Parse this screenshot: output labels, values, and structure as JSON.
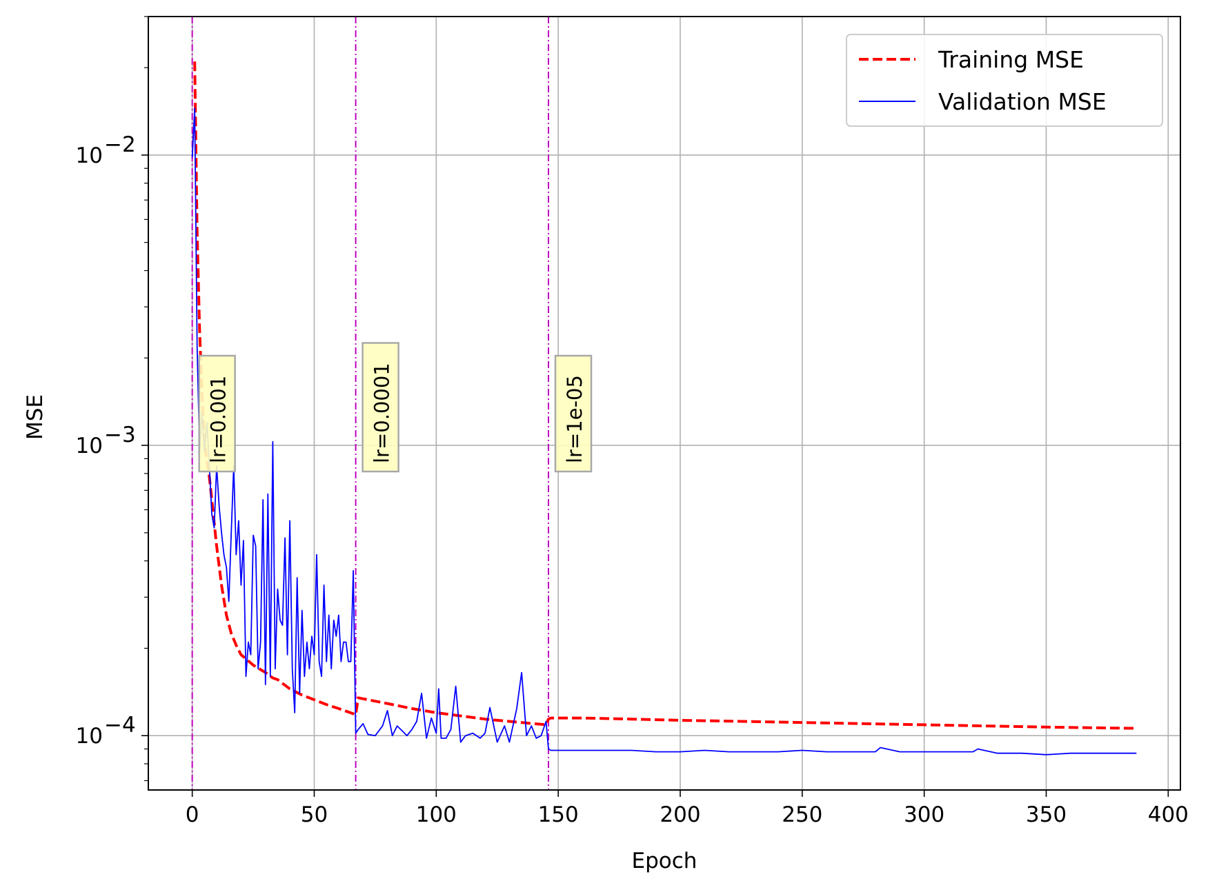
{
  "chart_data": {
    "type": "line",
    "xlabel": "Epoch",
    "ylabel": "MSE",
    "xlim": [
      -18,
      405
    ],
    "ylim": [
      6.5e-05,
      0.03
    ],
    "yscale": "log",
    "grid": true,
    "legend_position": "top-right",
    "x_ticks": [
      0,
      50,
      100,
      150,
      200,
      250,
      300,
      350,
      400
    ],
    "x_tick_labels": [
      "0",
      "50",
      "100",
      "150",
      "200",
      "250",
      "300",
      "350",
      "400"
    ],
    "y_ticks": [
      {
        "value": 0.01,
        "base": "10",
        "exp": "−2"
      },
      {
        "value": 0.001,
        "base": "10",
        "exp": "−3"
      },
      {
        "value": 0.0001,
        "base": "10",
        "exp": "−4"
      }
    ],
    "lr_changes": [
      {
        "epoch": 0,
        "label": "lr=0.001"
      },
      {
        "epoch": 67,
        "label": "lr=0.0001"
      },
      {
        "epoch": 146,
        "label": "lr=1e-05"
      }
    ],
    "series": [
      {
        "name": "Training MSE",
        "color": "#ff0000",
        "style": "dashed",
        "x": [
          1,
          2,
          3,
          4,
          5,
          6,
          7,
          8,
          10,
          12,
          14,
          16,
          18,
          20,
          25,
          30,
          33,
          35,
          40,
          45,
          50,
          55,
          60,
          66,
          67,
          68,
          70,
          80,
          90,
          100,
          110,
          120,
          130,
          140,
          145,
          146,
          147,
          160,
          180,
          200,
          250,
          300,
          350,
          387
        ],
        "y": [
          0.021,
          0.0055,
          0.0025,
          0.0015,
          0.00105,
          0.00088,
          0.00078,
          0.00065,
          0.00045,
          0.00033,
          0.00026,
          0.000225,
          0.000205,
          0.00019,
          0.000175,
          0.000165,
          0.000158,
          0.000156,
          0.000145,
          0.000138,
          0.000133,
          0.000128,
          0.000124,
          0.000119,
          0.000118,
          0.000135,
          0.000134,
          0.000129,
          0.000124,
          0.00012,
          0.000117,
          0.000114,
          0.000112,
          0.00011,
          0.000109,
          0.000114,
          0.000115,
          0.000115,
          0.000114,
          0.000113,
          0.000111,
          0.000109,
          0.000107,
          0.000106
        ]
      },
      {
        "name": "Validation MSE",
        "color": "#0000ff",
        "style": "solid",
        "x": [
          0,
          1,
          2,
          3,
          4,
          5,
          6,
          7,
          8,
          9,
          10,
          11,
          12,
          13,
          14,
          15,
          16,
          17,
          18,
          19,
          20,
          21,
          22,
          23,
          24,
          25,
          26,
          27,
          28,
          29,
          30,
          31,
          32,
          33,
          34,
          35,
          36,
          37,
          38,
          39,
          40,
          41,
          42,
          43,
          44,
          45,
          46,
          47,
          48,
          49,
          50,
          51,
          52,
          53,
          54,
          55,
          56,
          57,
          58,
          59,
          60,
          61,
          62,
          63,
          64,
          65,
          66,
          67,
          68,
          70,
          72,
          75,
          78,
          80,
          82,
          84,
          86,
          88,
          90,
          92,
          94,
          96,
          98,
          100,
          101,
          102,
          104,
          106,
          108,
          110,
          112,
          115,
          118,
          120,
          122,
          125,
          128,
          130,
          133,
          135,
          137,
          139,
          141,
          143,
          145,
          146,
          147,
          150,
          160,
          170,
          180,
          190,
          200,
          210,
          220,
          230,
          240,
          250,
          260,
          270,
          280,
          282,
          290,
          300,
          310,
          320,
          322,
          330,
          340,
          350,
          360,
          370,
          380,
          387
        ],
        "y": [
          0.0098,
          0.0145,
          0.0022,
          0.00095,
          0.0013,
          0.00095,
          0.0012,
          0.00085,
          0.00058,
          0.00052,
          0.00085,
          0.00062,
          0.0005,
          0.00042,
          0.00038,
          0.00029,
          0.0005,
          0.00085,
          0.00042,
          0.00055,
          0.00033,
          0.00047,
          0.00016,
          0.00021,
          0.00019,
          0.00049,
          0.00045,
          0.00017,
          0.00021,
          0.00065,
          0.00015,
          0.00068,
          0.00016,
          0.00103,
          0.00017,
          0.00032,
          0.00025,
          0.00024,
          0.00048,
          0.00019,
          0.00055,
          0.00017,
          0.00012,
          0.00035,
          0.00014,
          0.00027,
          0.00016,
          0.00021,
          0.00017,
          0.00022,
          0.00019,
          0.00042,
          0.00018,
          0.00016,
          0.00033,
          0.00018,
          0.00026,
          0.00017,
          0.00025,
          0.00022,
          0.00026,
          0.00018,
          0.00021,
          0.00021,
          0.00018,
          0.00018,
          0.00037,
          0.000102,
          0.000105,
          0.00011,
          0.000101,
          0.0001,
          0.000108,
          0.000122,
          0.0001,
          0.000108,
          0.000104,
          0.0001,
          0.000105,
          0.000112,
          0.00014,
          9.8e-05,
          0.000115,
          0.000102,
          0.000145,
          9.8e-05,
          9.8e-05,
          0.000105,
          0.000148,
          9.5e-05,
          0.0001,
          0.000102,
          9.8e-05,
          0.000102,
          0.000125,
          9.5e-05,
          0.000108,
          9.5e-05,
          0.000124,
          0.000165,
          0.0001,
          0.000108,
          9.8e-05,
          0.0001,
          0.000112,
          9e-05,
          8.9e-05,
          8.9e-05,
          8.9e-05,
          8.9e-05,
          8.9e-05,
          8.8e-05,
          8.8e-05,
          8.9e-05,
          8.8e-05,
          8.8e-05,
          8.8e-05,
          8.9e-05,
          8.8e-05,
          8.8e-05,
          8.8e-05,
          9.1e-05,
          8.8e-05,
          8.8e-05,
          8.8e-05,
          8.8e-05,
          9e-05,
          8.7e-05,
          8.7e-05,
          8.6e-05,
          8.7e-05,
          8.7e-05,
          8.7e-05,
          8.7e-05
        ]
      }
    ]
  }
}
